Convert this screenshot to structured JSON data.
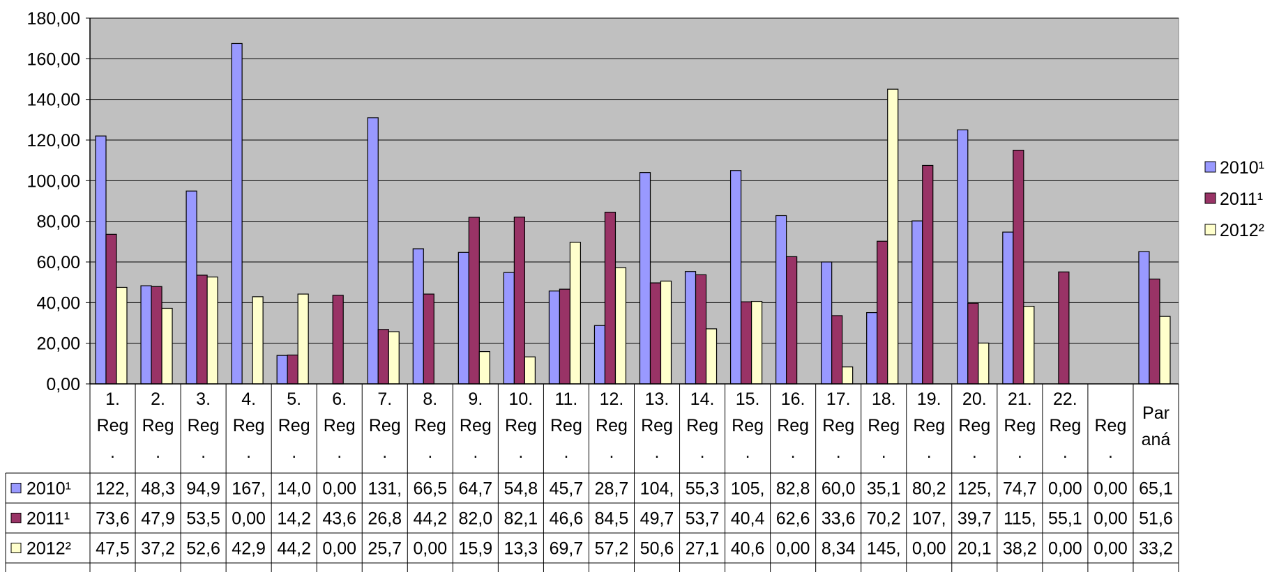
{
  "chart_data": {
    "type": "bar",
    "ylim": [
      0,
      180
    ],
    "yticks": [
      "0,00",
      "20,00",
      "40,00",
      "60,00",
      "80,00",
      "100,00",
      "120,00",
      "140,00",
      "160,00",
      "180,00"
    ],
    "grid": true,
    "legend_position": "right",
    "categories": [
      [
        "1.",
        "Reg",
        "."
      ],
      [
        "2.",
        "Reg",
        "."
      ],
      [
        "3.",
        "Reg",
        "."
      ],
      [
        "4.",
        "Reg",
        "."
      ],
      [
        "5.",
        "Reg",
        "."
      ],
      [
        "6.",
        "Reg",
        "."
      ],
      [
        "7.",
        "Reg",
        "."
      ],
      [
        "8.",
        "Reg",
        "."
      ],
      [
        "9.",
        "Reg",
        "."
      ],
      [
        "10.",
        "Reg",
        "."
      ],
      [
        "11.",
        "Reg",
        "."
      ],
      [
        "12.",
        "Reg",
        "."
      ],
      [
        "13.",
        "Reg",
        "."
      ],
      [
        "14.",
        "Reg",
        "."
      ],
      [
        "15.",
        "Reg",
        "."
      ],
      [
        "16.",
        "Reg",
        "."
      ],
      [
        "17.",
        "Reg",
        "."
      ],
      [
        "18.",
        "Reg",
        "."
      ],
      [
        "19.",
        "Reg",
        "."
      ],
      [
        "20.",
        "Reg",
        "."
      ],
      [
        "21.",
        "Reg",
        "."
      ],
      [
        "22.",
        "Reg",
        "."
      ],
      [
        "",
        "Reg",
        "."
      ],
      [
        "Par",
        "aná"
      ]
    ],
    "series": [
      {
        "name": "2010¹",
        "color": "#9999ff",
        "values": [
          122.0,
          48.3,
          94.9,
          167.5,
          14.0,
          0.0,
          131.0,
          66.5,
          64.7,
          54.8,
          45.7,
          28.7,
          104.0,
          55.3,
          105.0,
          82.8,
          60.0,
          35.1,
          80.2,
          125.0,
          74.7,
          0.0,
          0.0,
          65.1
        ],
        "labels": [
          "122,",
          "48,3",
          "94,9",
          "167,",
          "14,0",
          "0,00",
          "131,",
          "66,5",
          "64,7",
          "54,8",
          "45,7",
          "28,7",
          "104,",
          "55,3",
          "105,",
          "82,8",
          "60,0",
          "35,1",
          "80,2",
          "125,",
          "74,7",
          "0,00",
          "0,00",
          "65,1"
        ]
      },
      {
        "name": "2011¹",
        "color": "#993366",
        "values": [
          73.6,
          47.9,
          53.5,
          0.0,
          14.2,
          43.6,
          26.8,
          44.2,
          82.0,
          82.1,
          46.6,
          84.5,
          49.7,
          53.7,
          40.4,
          62.6,
          33.6,
          70.2,
          107.5,
          39.7,
          115.0,
          55.1,
          0.0,
          51.6
        ],
        "labels": [
          "73,6",
          "47,9",
          "53,5",
          "0,00",
          "14,2",
          "43,6",
          "26,8",
          "44,2",
          "82,0",
          "82,1",
          "46,6",
          "84,5",
          "49,7",
          "53,7",
          "40,4",
          "62,6",
          "33,6",
          "70,2",
          "107,",
          "39,7",
          "115,",
          "55,1",
          "0,00",
          "51,6"
        ]
      },
      {
        "name": "2012²",
        "color": "#ffffcc",
        "values": [
          47.5,
          37.2,
          52.6,
          42.9,
          44.2,
          0.0,
          25.7,
          0.0,
          15.9,
          13.3,
          69.7,
          57.2,
          50.6,
          27.1,
          40.6,
          0.0,
          8.34,
          145.0,
          0.0,
          20.1,
          38.2,
          0.0,
          0.0,
          33.2
        ],
        "labels": [
          "47,5",
          "37,2",
          "52,6",
          "42,9",
          "44,2",
          "0,00",
          "25,7",
          "0,00",
          "15,9",
          "13,3",
          "69,7",
          "57,2",
          "50,6",
          "27,1",
          "40,6",
          "0,00",
          "8,34",
          "145,",
          "0,00",
          "20,1",
          "38,2",
          "0,00",
          "0,00",
          "33,2"
        ]
      }
    ]
  }
}
